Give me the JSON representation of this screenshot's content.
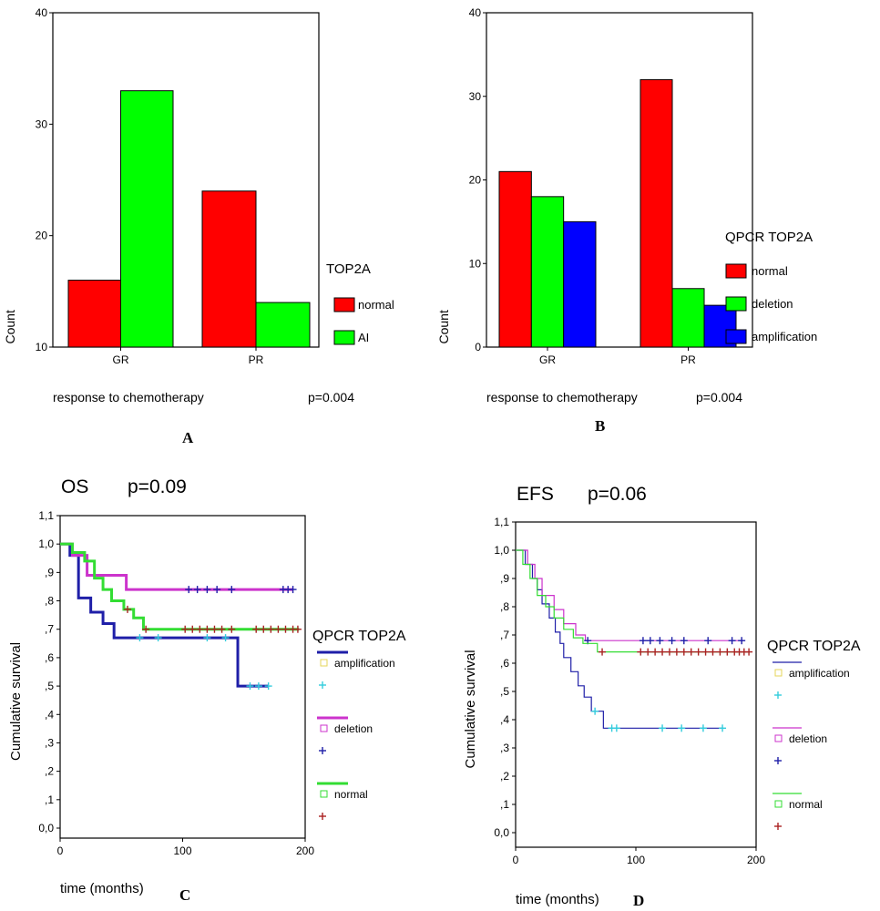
{
  "chart_data": [
    {
      "panel": "A",
      "type": "bar",
      "title": "",
      "xlabel": "response to chemotherapy",
      "ylabel": "Count",
      "annotation": "p=0.004",
      "categories": [
        "GR",
        "PR"
      ],
      "yticks": [
        10,
        20,
        30,
        40
      ],
      "ylim": [
        10,
        40
      ],
      "legend_title": "TOP2A",
      "legend_position": "right",
      "series": [
        {
          "name": "normal",
          "color": "#ff0000",
          "values": [
            16,
            24
          ]
        },
        {
          "name": "AI",
          "color": "#00ff00",
          "values": [
            33,
            14
          ]
        }
      ]
    },
    {
      "panel": "B",
      "type": "bar",
      "title": "",
      "xlabel": "response to chemotherapy",
      "ylabel": "Count",
      "annotation": "p=0.004",
      "categories": [
        "GR",
        "PR"
      ],
      "yticks": [
        0,
        10,
        20,
        30,
        40
      ],
      "ylim": [
        0,
        40
      ],
      "legend_title": "QPCR TOP2A",
      "legend_position": "right",
      "series": [
        {
          "name": "normal",
          "color": "#ff0000",
          "values": [
            21,
            32
          ]
        },
        {
          "name": "deletion",
          "color": "#00ff00",
          "values": [
            18,
            7
          ]
        },
        {
          "name": "amplification",
          "color": "#0000ff",
          "values": [
            15,
            5
          ]
        }
      ]
    },
    {
      "panel": "C",
      "type": "line",
      "title": "OS",
      "pvalue": "p=0.09",
      "xlabel": "time (months)",
      "ylabel": "Cumulative survival",
      "xlim": [
        0,
        200
      ],
      "ylim": [
        0.0,
        1.1
      ],
      "xticks": [
        "0",
        "100",
        "200"
      ],
      "yticks": [
        "0,0",
        ",1",
        ",2",
        ",3",
        ",4",
        ",5",
        ",6",
        ",7",
        ",8",
        ",9",
        "1,0",
        "1,1"
      ],
      "line_width": "thick",
      "legend_title": "QPCR TOP2A",
      "legend_position": "right",
      "series": [
        {
          "name": "amplification",
          "color": "#1f1fa8",
          "censor_color": "#33ccdd",
          "steps": [
            [
              0,
              1.0
            ],
            [
              8,
              0.96
            ],
            [
              15,
              0.81
            ],
            [
              25,
              0.76
            ],
            [
              35,
              0.72
            ],
            [
              44,
              0.67
            ],
            [
              145,
              0.5
            ],
            [
              170,
              0.5
            ]
          ],
          "censored": [
            [
              65,
              0.67
            ],
            [
              80,
              0.67
            ],
            [
              120,
              0.67
            ],
            [
              135,
              0.67
            ],
            [
              155,
              0.5
            ],
            [
              162,
              0.5
            ],
            [
              170,
              0.5
            ]
          ]
        },
        {
          "name": "deletion",
          "color": "#cc33cc",
          "censor_color": "#1f1fa8",
          "steps": [
            [
              0,
              1.0
            ],
            [
              10,
              0.96
            ],
            [
              22,
              0.89
            ],
            [
              54,
              0.84
            ],
            [
              190,
              0.84
            ]
          ],
          "censored": [
            [
              105,
              0.84
            ],
            [
              112,
              0.84
            ],
            [
              120,
              0.84
            ],
            [
              128,
              0.84
            ],
            [
              140,
              0.84
            ],
            [
              182,
              0.84
            ],
            [
              186,
              0.84
            ],
            [
              190,
              0.84
            ]
          ]
        },
        {
          "name": "normal",
          "color": "#33dd33",
          "censor_color": "#aa2222",
          "steps": [
            [
              0,
              1.0
            ],
            [
              10,
              0.97
            ],
            [
              20,
              0.94
            ],
            [
              28,
              0.88
            ],
            [
              35,
              0.84
            ],
            [
              42,
              0.8
            ],
            [
              52,
              0.77
            ],
            [
              60,
              0.74
            ],
            [
              68,
              0.7
            ],
            [
              195,
              0.7
            ]
          ],
          "censored": [
            [
              55,
              0.77
            ],
            [
              70,
              0.7
            ],
            [
              102,
              0.7
            ],
            [
              108,
              0.7
            ],
            [
              114,
              0.7
            ],
            [
              120,
              0.7
            ],
            [
              126,
              0.7
            ],
            [
              132,
              0.7
            ],
            [
              140,
              0.7
            ],
            [
              160,
              0.7
            ],
            [
              166,
              0.7
            ],
            [
              172,
              0.7
            ],
            [
              178,
              0.7
            ],
            [
              184,
              0.7
            ],
            [
              190,
              0.7
            ],
            [
              194,
              0.7
            ]
          ]
        }
      ],
      "legend_items": [
        {
          "label": "amplification",
          "marker": "line",
          "color": "#1f1fa8"
        },
        {
          "label": "",
          "marker": "+",
          "color": "#33ccdd"
        },
        {
          "label": "deletion",
          "marker": "line",
          "color": "#cc33cc"
        },
        {
          "label": "",
          "marker": "+",
          "color": "#1f1fa8"
        },
        {
          "label": "normal",
          "marker": "line",
          "color": "#33dd33"
        },
        {
          "label": "",
          "marker": "+",
          "color": "#aa2222"
        }
      ]
    },
    {
      "panel": "D",
      "type": "line",
      "title": "EFS",
      "pvalue": "p=0.06",
      "xlabel": "time (months)",
      "ylabel": "Cumulative survival",
      "xlim": [
        0,
        200
      ],
      "ylim": [
        0.0,
        1.1
      ],
      "xticks": [
        "0",
        "100",
        "200"
      ],
      "yticks": [
        "0,0",
        ",1",
        ",2",
        ",3",
        ",4",
        ",5",
        ",6",
        ",7",
        ",8",
        ",9",
        "1,0",
        "1,1"
      ],
      "line_width": "thin",
      "legend_title": "QPCR TOP2A",
      "legend_position": "right",
      "series": [
        {
          "name": "amplification",
          "color": "#1f1fa8",
          "censor_color": "#33ccdd",
          "steps": [
            [
              0,
              1.0
            ],
            [
              8,
              0.95
            ],
            [
              14,
              0.9
            ],
            [
              18,
              0.86
            ],
            [
              22,
              0.81
            ],
            [
              28,
              0.76
            ],
            [
              33,
              0.71
            ],
            [
              37,
              0.67
            ],
            [
              40,
              0.62
            ],
            [
              46,
              0.57
            ],
            [
              52,
              0.52
            ],
            [
              57,
              0.48
            ],
            [
              63,
              0.43
            ],
            [
              73,
              0.37
            ],
            [
              172,
              0.37
            ]
          ],
          "censored": [
            [
              66,
              0.43
            ],
            [
              80,
              0.37
            ],
            [
              84,
              0.37
            ],
            [
              122,
              0.37
            ],
            [
              138,
              0.37
            ],
            [
              156,
              0.37
            ],
            [
              172,
              0.37
            ]
          ]
        },
        {
          "name": "deletion",
          "color": "#cc33cc",
          "censor_color": "#1f1fa8",
          "steps": [
            [
              0,
              1.0
            ],
            [
              10,
              0.95
            ],
            [
              16,
              0.9
            ],
            [
              22,
              0.84
            ],
            [
              32,
              0.79
            ],
            [
              40,
              0.74
            ],
            [
              50,
              0.7
            ],
            [
              58,
              0.68
            ],
            [
              190,
              0.68
            ]
          ],
          "censored": [
            [
              60,
              0.68
            ],
            [
              106,
              0.68
            ],
            [
              112,
              0.68
            ],
            [
              120,
              0.68
            ],
            [
              130,
              0.68
            ],
            [
              140,
              0.68
            ],
            [
              160,
              0.68
            ],
            [
              180,
              0.68
            ],
            [
              188,
              0.68
            ]
          ]
        },
        {
          "name": "normal",
          "color": "#33dd33",
          "censor_color": "#aa2222",
          "steps": [
            [
              0,
              1.0
            ],
            [
              6,
              0.95
            ],
            [
              12,
              0.9
            ],
            [
              18,
              0.84
            ],
            [
              25,
              0.8
            ],
            [
              32,
              0.76
            ],
            [
              40,
              0.72
            ],
            [
              48,
              0.69
            ],
            [
              56,
              0.67
            ],
            [
              68,
              0.64
            ],
            [
              195,
              0.64
            ]
          ],
          "censored": [
            [
              72,
              0.64
            ],
            [
              104,
              0.64
            ],
            [
              110,
              0.64
            ],
            [
              116,
              0.64
            ],
            [
              122,
              0.64
            ],
            [
              128,
              0.64
            ],
            [
              134,
              0.64
            ],
            [
              140,
              0.64
            ],
            [
              146,
              0.64
            ],
            [
              152,
              0.64
            ],
            [
              158,
              0.64
            ],
            [
              164,
              0.64
            ],
            [
              170,
              0.64
            ],
            [
              176,
              0.64
            ],
            [
              182,
              0.64
            ],
            [
              186,
              0.64
            ],
            [
              190,
              0.64
            ],
            [
              194,
              0.64
            ]
          ]
        }
      ],
      "legend_items": [
        {
          "label": "amplification",
          "marker": "line",
          "color": "#1f1fa8"
        },
        {
          "label": "",
          "marker": "+",
          "color": "#33ccdd"
        },
        {
          "label": "deletion",
          "marker": "line",
          "color": "#cc33cc"
        },
        {
          "label": "",
          "marker": "+",
          "color": "#1f1fa8"
        },
        {
          "label": "normal",
          "marker": "line",
          "color": "#33dd33"
        },
        {
          "label": "",
          "marker": "+",
          "color": "#aa2222"
        }
      ]
    }
  ]
}
